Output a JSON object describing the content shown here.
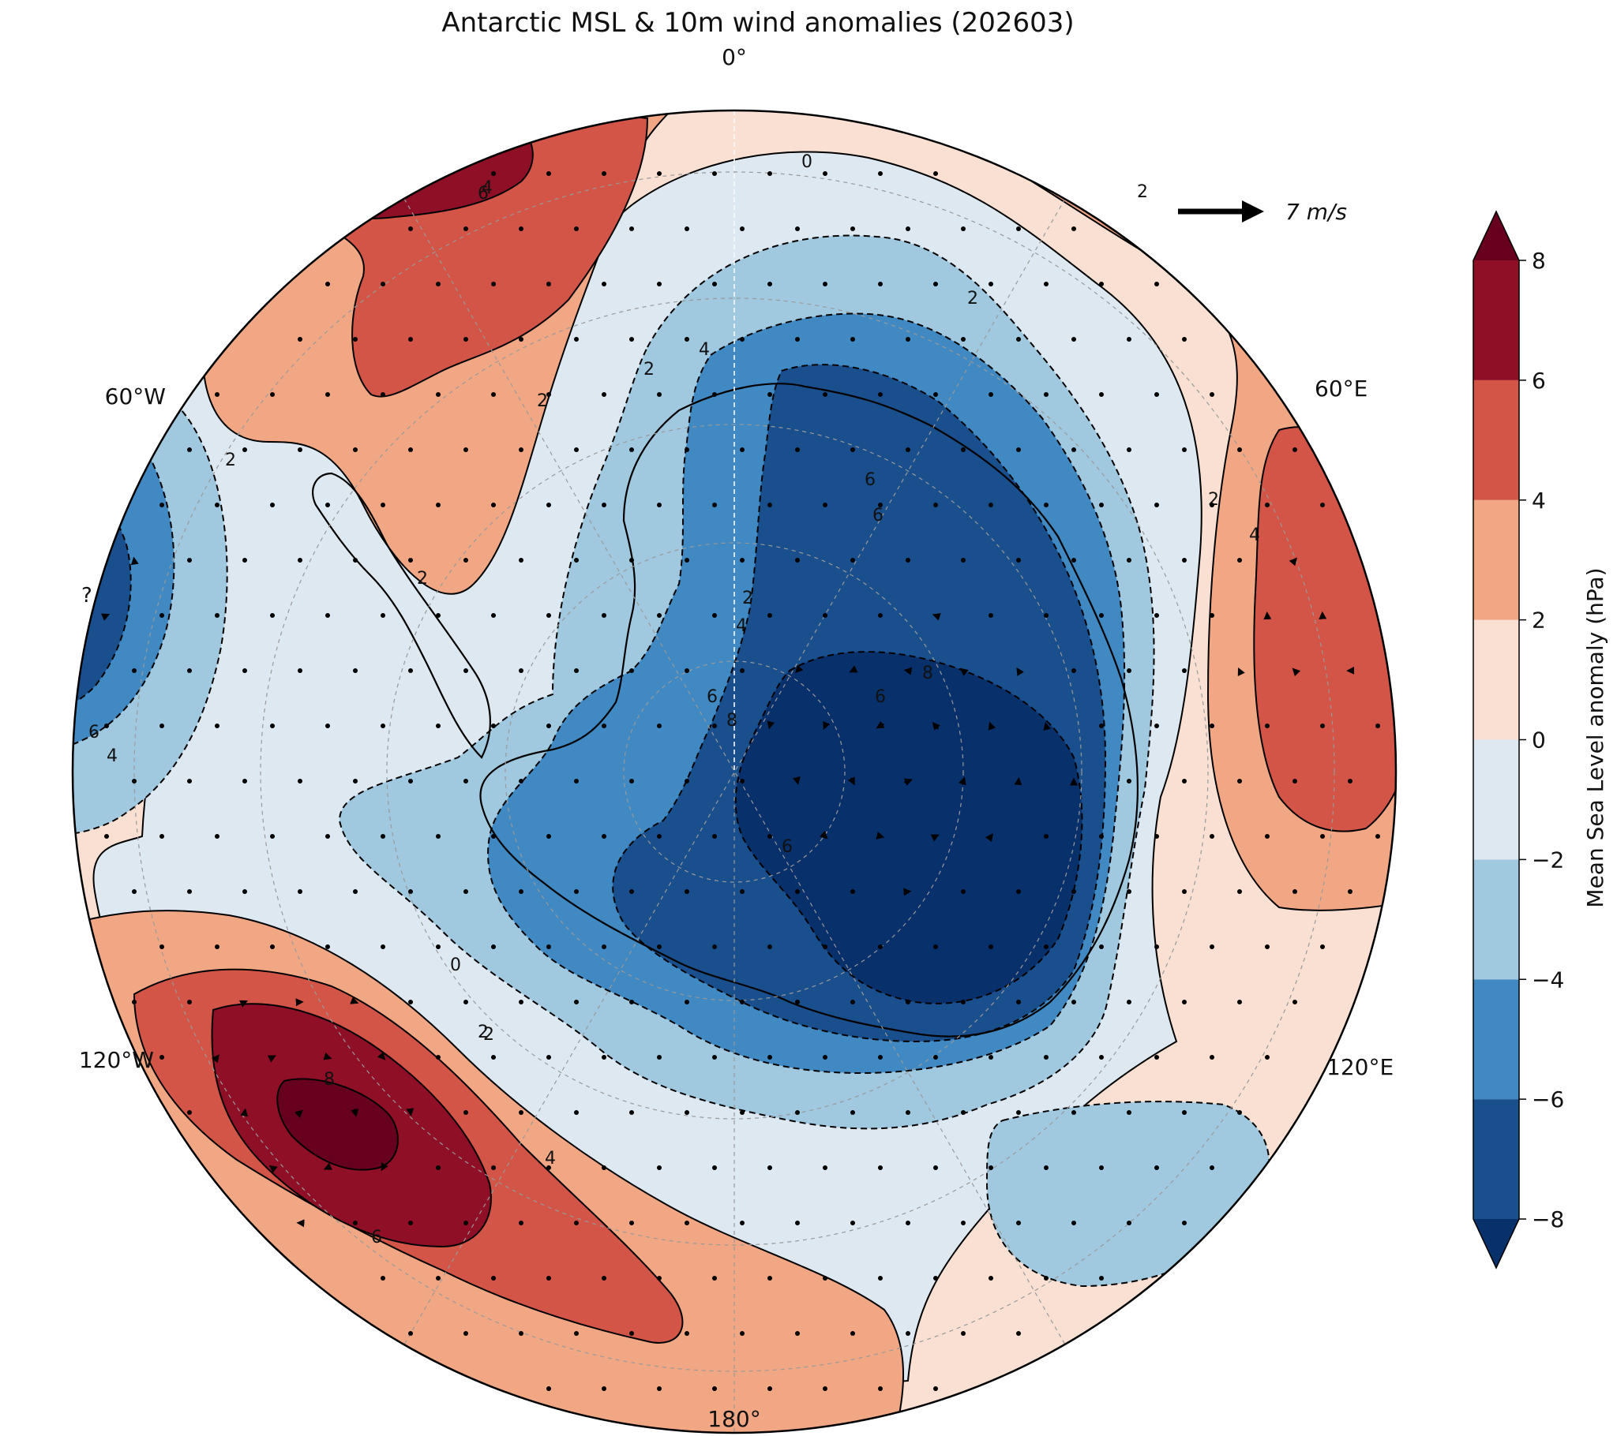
{
  "title": "Antarctic MSL & 10m wind anomalies (202603)",
  "longitude_labels": {
    "top": "0°",
    "bottom": "180°",
    "upper_left": "60°W",
    "upper_right": "60°E",
    "lower_left": "120°W",
    "lower_right": "120°E",
    "left_edge_cut": "?"
  },
  "reference_vector": {
    "label": "7 m/s",
    "magnitude": 7,
    "units": "m/s"
  },
  "contour_labels": [
    "0",
    "2",
    "2",
    "4",
    "6",
    "2",
    "2",
    "4",
    "6",
    "6",
    "8",
    "2",
    "4",
    "6",
    "8",
    "2",
    "4",
    "2",
    "4",
    "6",
    "6",
    "2",
    "2",
    "0",
    "2",
    "4",
    "6",
    "8",
    "6"
  ],
  "colorbar": {
    "label": "Mean Sea Level anomaly (hPa)",
    "ticks": [
      "8",
      "6",
      "4",
      "2",
      "0",
      "−2",
      "−4",
      "−6",
      "−8"
    ],
    "levels": [
      -8,
      -6,
      -4,
      -2,
      0,
      2,
      4,
      6,
      8
    ],
    "colors": [
      "#08306b",
      "#1a4f8d",
      "#4089c2",
      "#a0c9e0",
      "#dde8f1",
      "#f9e0d2",
      "#f2a784",
      "#d25547",
      "#8f0f26",
      "#67001f"
    ]
  },
  "chart_data": {
    "type": "heatmap",
    "projection": "south-polar-stereographic",
    "variable": "Mean Sea Level anomaly",
    "units": "hPa",
    "period": "202603",
    "level_range": [
      -8,
      8
    ],
    "contour_interval": 2,
    "features": [
      {
        "name": "Antarctic continent low",
        "sign": "negative",
        "min_value": -8
      },
      {
        "name": "South Pacific high (120°W–180°)",
        "sign": "positive",
        "max_value": 8
      },
      {
        "name": "South Atlantic high (~30°W)",
        "sign": "positive",
        "max_value": 6
      },
      {
        "name": "Indian Ocean high (~70°E)",
        "sign": "positive",
        "max_value": 6
      },
      {
        "name": "Amundsen/Bellingshausen low (~90°W)",
        "sign": "negative",
        "min_value": -6
      }
    ],
    "wind_reference_speed": 7
  }
}
